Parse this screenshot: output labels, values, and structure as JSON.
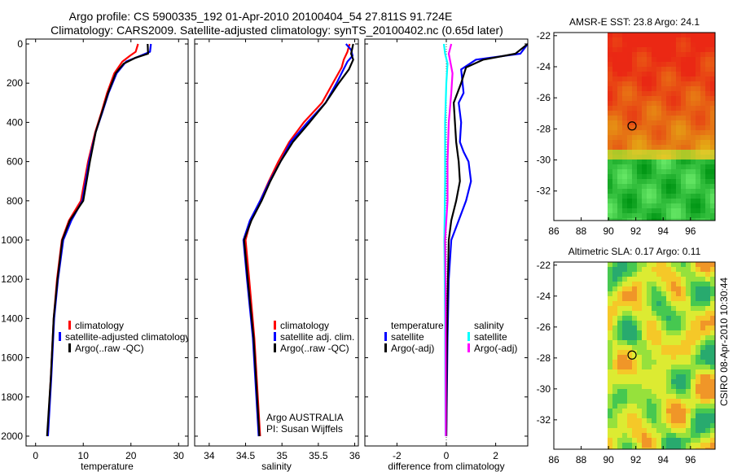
{
  "titles": {
    "line1": "Argo profile: CS 5900335_192 01-Apr-2010 20100404_54 27.811S 91.724E",
    "line2": "Climatology: CARS2009. Satellite-adjusted climatology: synTS_20100402.nc (0.65d later)"
  },
  "colors": {
    "red": "#ff0000",
    "blue": "#0000ff",
    "black": "#000000",
    "cyan": "#00ffff",
    "magenta": "#ff00ff"
  },
  "chart_data": [
    {
      "id": "temperature",
      "type": "line",
      "xlabel": "temperature",
      "xlim": [
        -2,
        32
      ],
      "ylim": [
        0,
        2050
      ],
      "xticks": [
        "0",
        "10",
        "20",
        "30"
      ],
      "yticks": [
        "0",
        "200",
        "400",
        "600",
        "800",
        "1000",
        "1200",
        "1400",
        "1600",
        "1800",
        "2000"
      ],
      "legend": [
        "climatology",
        "satellite-adjusted climatology",
        "Argo(..raw -QC)"
      ],
      "series": [
        {
          "name": "climatology",
          "color": "red",
          "points": [
            [
              21.5,
              0
            ],
            [
              21.0,
              40
            ],
            [
              19.8,
              60
            ],
            [
              18.2,
              90
            ],
            [
              16.5,
              150
            ],
            [
              15.0,
              250
            ],
            [
              13.8,
              350
            ],
            [
              12.5,
              450
            ],
            [
              11.0,
              600
            ],
            [
              9.5,
              800
            ],
            [
              7.0,
              900
            ],
            [
              5.5,
              1000
            ],
            [
              4.5,
              1200
            ],
            [
              3.8,
              1400
            ],
            [
              3.2,
              1700
            ],
            [
              2.5,
              2000
            ]
          ]
        },
        {
          "name": "satellite-adjusted climatology",
          "color": "blue",
          "points": [
            [
              24.2,
              0
            ],
            [
              24.0,
              40
            ],
            [
              22.0,
              60
            ],
            [
              19.0,
              90
            ],
            [
              17.0,
              150
            ],
            [
              15.3,
              250
            ],
            [
              14.0,
              350
            ],
            [
              12.6,
              450
            ],
            [
              11.2,
              600
            ],
            [
              9.8,
              800
            ],
            [
              7.5,
              900
            ],
            [
              5.8,
              1000
            ],
            [
              4.7,
              1200
            ],
            [
              3.9,
              1400
            ],
            [
              3.3,
              1700
            ],
            [
              2.6,
              2000
            ]
          ]
        },
        {
          "name": "Argo(..raw -QC)",
          "color": "black",
          "points": [
            [
              23.5,
              0
            ],
            [
              23.6,
              50
            ],
            [
              21.0,
              70
            ],
            [
              18.5,
              100
            ],
            [
              16.8,
              150
            ],
            [
              15.2,
              250
            ],
            [
              13.9,
              350
            ],
            [
              12.6,
              450
            ],
            [
              11.4,
              600
            ],
            [
              10.0,
              800
            ],
            [
              7.2,
              900
            ],
            [
              5.6,
              1000
            ],
            [
              4.6,
              1200
            ],
            [
              3.8,
              1400
            ],
            [
              3.2,
              1700
            ],
            [
              2.4,
              2000
            ]
          ]
        }
      ]
    },
    {
      "id": "salinity",
      "type": "line",
      "xlabel": "salinity",
      "xlim": [
        33.8,
        36.05
      ],
      "ylim": [
        0,
        2050
      ],
      "xticks": [
        "34",
        "34.5",
        "35",
        "35.5",
        "36"
      ],
      "legend": [
        "climatology",
        "satellite adj. clim.",
        "Argo(..raw -QC)"
      ],
      "annotation": [
        "Argo AUSTRALIA",
        "PI: Susan Wijffels"
      ],
      "series": [
        {
          "name": "climatology",
          "color": "red",
          "points": [
            [
              35.93,
              0
            ],
            [
              35.9,
              40
            ],
            [
              35.85,
              80
            ],
            [
              35.82,
              120
            ],
            [
              35.7,
              200
            ],
            [
              35.55,
              300
            ],
            [
              35.3,
              400
            ],
            [
              35.1,
              500
            ],
            [
              34.95,
              600
            ],
            [
              34.82,
              700
            ],
            [
              34.7,
              800
            ],
            [
              34.57,
              900
            ],
            [
              34.5,
              1000
            ],
            [
              34.55,
              1200
            ],
            [
              34.62,
              1500
            ],
            [
              34.7,
              2000
            ]
          ]
        },
        {
          "name": "satellite adj. clim.",
          "color": "blue",
          "points": [
            [
              35.88,
              0
            ],
            [
              35.95,
              30
            ],
            [
              35.97,
              60
            ],
            [
              35.9,
              90
            ],
            [
              35.75,
              200
            ],
            [
              35.6,
              300
            ],
            [
              35.35,
              400
            ],
            [
              35.12,
              500
            ],
            [
              34.98,
              600
            ],
            [
              34.83,
              700
            ],
            [
              34.7,
              800
            ],
            [
              34.56,
              900
            ],
            [
              34.47,
              1000
            ],
            [
              34.52,
              1200
            ],
            [
              34.6,
              1500
            ],
            [
              34.68,
              2000
            ]
          ]
        },
        {
          "name": "Argo(..raw -QC)",
          "color": "black",
          "points": [
            [
              35.98,
              0
            ],
            [
              35.95,
              50
            ],
            [
              35.98,
              80
            ],
            [
              35.92,
              130
            ],
            [
              35.78,
              200
            ],
            [
              35.6,
              300
            ],
            [
              35.38,
              400
            ],
            [
              35.15,
              500
            ],
            [
              34.98,
              600
            ],
            [
              34.84,
              700
            ],
            [
              34.72,
              800
            ],
            [
              34.58,
              900
            ],
            [
              34.48,
              1000
            ],
            [
              34.53,
              1200
            ],
            [
              34.61,
              1500
            ],
            [
              34.69,
              2000
            ]
          ]
        }
      ]
    },
    {
      "id": "difference",
      "type": "line",
      "xlabel": "difference from climatology",
      "xlim": [
        -3.3,
        3.3
      ],
      "ylim": [
        0,
        2050
      ],
      "xticks": [
        "-2",
        "0",
        "2"
      ],
      "legend": [
        "temperature",
        "satellite",
        "Argo(-adj)",
        "salinity",
        "satellite",
        "Argo(-adj)"
      ],
      "series": [
        {
          "name": "temperature satellite",
          "color": "blue",
          "points": [
            [
              3.3,
              0
            ],
            [
              3.0,
              50
            ],
            [
              1.2,
              80
            ],
            [
              0.6,
              130
            ],
            [
              0.7,
              250
            ],
            [
              0.5,
              300
            ],
            [
              0.6,
              400
            ],
            [
              0.55,
              500
            ],
            [
              0.7,
              550
            ],
            [
              0.9,
              600
            ],
            [
              1.0,
              700
            ],
            [
              0.8,
              800
            ],
            [
              0.5,
              900
            ],
            [
              0.2,
              1000
            ],
            [
              0.1,
              1200
            ],
            [
              0.05,
              1500
            ],
            [
              0.0,
              2000
            ]
          ]
        },
        {
          "name": "temperature Argo(-adj)",
          "color": "black",
          "points": [
            [
              3.3,
              0
            ],
            [
              2.8,
              50
            ],
            [
              1.5,
              80
            ],
            [
              0.8,
              120
            ],
            [
              0.6,
              200
            ],
            [
              0.3,
              300
            ],
            [
              0.4,
              500
            ],
            [
              0.5,
              600
            ],
            [
              0.55,
              700
            ],
            [
              0.4,
              800
            ],
            [
              0.2,
              900
            ],
            [
              0.1,
              1000
            ],
            [
              0.05,
              1300
            ],
            [
              0.02,
              1600
            ],
            [
              0.0,
              2000
            ]
          ]
        },
        {
          "name": "salinity satellite",
          "color": "cyan",
          "points": [
            [
              -0.1,
              0
            ],
            [
              -0.05,
              50
            ],
            [
              0.05,
              100
            ],
            [
              0.0,
              200
            ],
            [
              -0.05,
              400
            ],
            [
              -0.05,
              700
            ],
            [
              -0.08,
              1000
            ],
            [
              -0.05,
              1400
            ],
            [
              -0.03,
              2000
            ]
          ]
        },
        {
          "name": "salinity Argo(-adj)",
          "color": "magenta",
          "points": [
            [
              0.2,
              0
            ],
            [
              0.1,
              50
            ],
            [
              0.25,
              150
            ],
            [
              0.2,
              250
            ],
            [
              0.1,
              400
            ],
            [
              0.05,
              600
            ],
            [
              0.05,
              800
            ],
            [
              -0.05,
              1000
            ],
            [
              -0.03,
              1200
            ],
            [
              -0.02,
              2000
            ]
          ]
        }
      ]
    }
  ],
  "maps": [
    {
      "id": "sst-map",
      "title": "AMSR-E SST: 23.8 Argo: 24.1",
      "lon_range": [
        86,
        97.8
      ],
      "lat_range": [
        -33.9,
        -21.8
      ],
      "xticks": [
        "86",
        "88",
        "90",
        "92",
        "94",
        "96"
      ],
      "yticks": [
        "-22",
        "-24",
        "-26",
        "-28",
        "-30",
        "-32"
      ],
      "float_position": {
        "lon": 91.724,
        "lat": -27.811
      }
    },
    {
      "id": "sla-map",
      "title": "Altimetric SLA: 0.17 Argo: 0.11",
      "lon_range": [
        86,
        97.8
      ],
      "lat_range": [
        -33.9,
        -21.8
      ],
      "xticks": [
        "86",
        "88",
        "90",
        "92",
        "94",
        "96"
      ],
      "yticks": [
        "-22",
        "-24",
        "-26",
        "-28",
        "-30",
        "-32"
      ],
      "float_position": {
        "lon": 91.724,
        "lat": -27.811
      }
    }
  ],
  "side_label": "CSIRO 08-Apr-2010 10:30:44"
}
